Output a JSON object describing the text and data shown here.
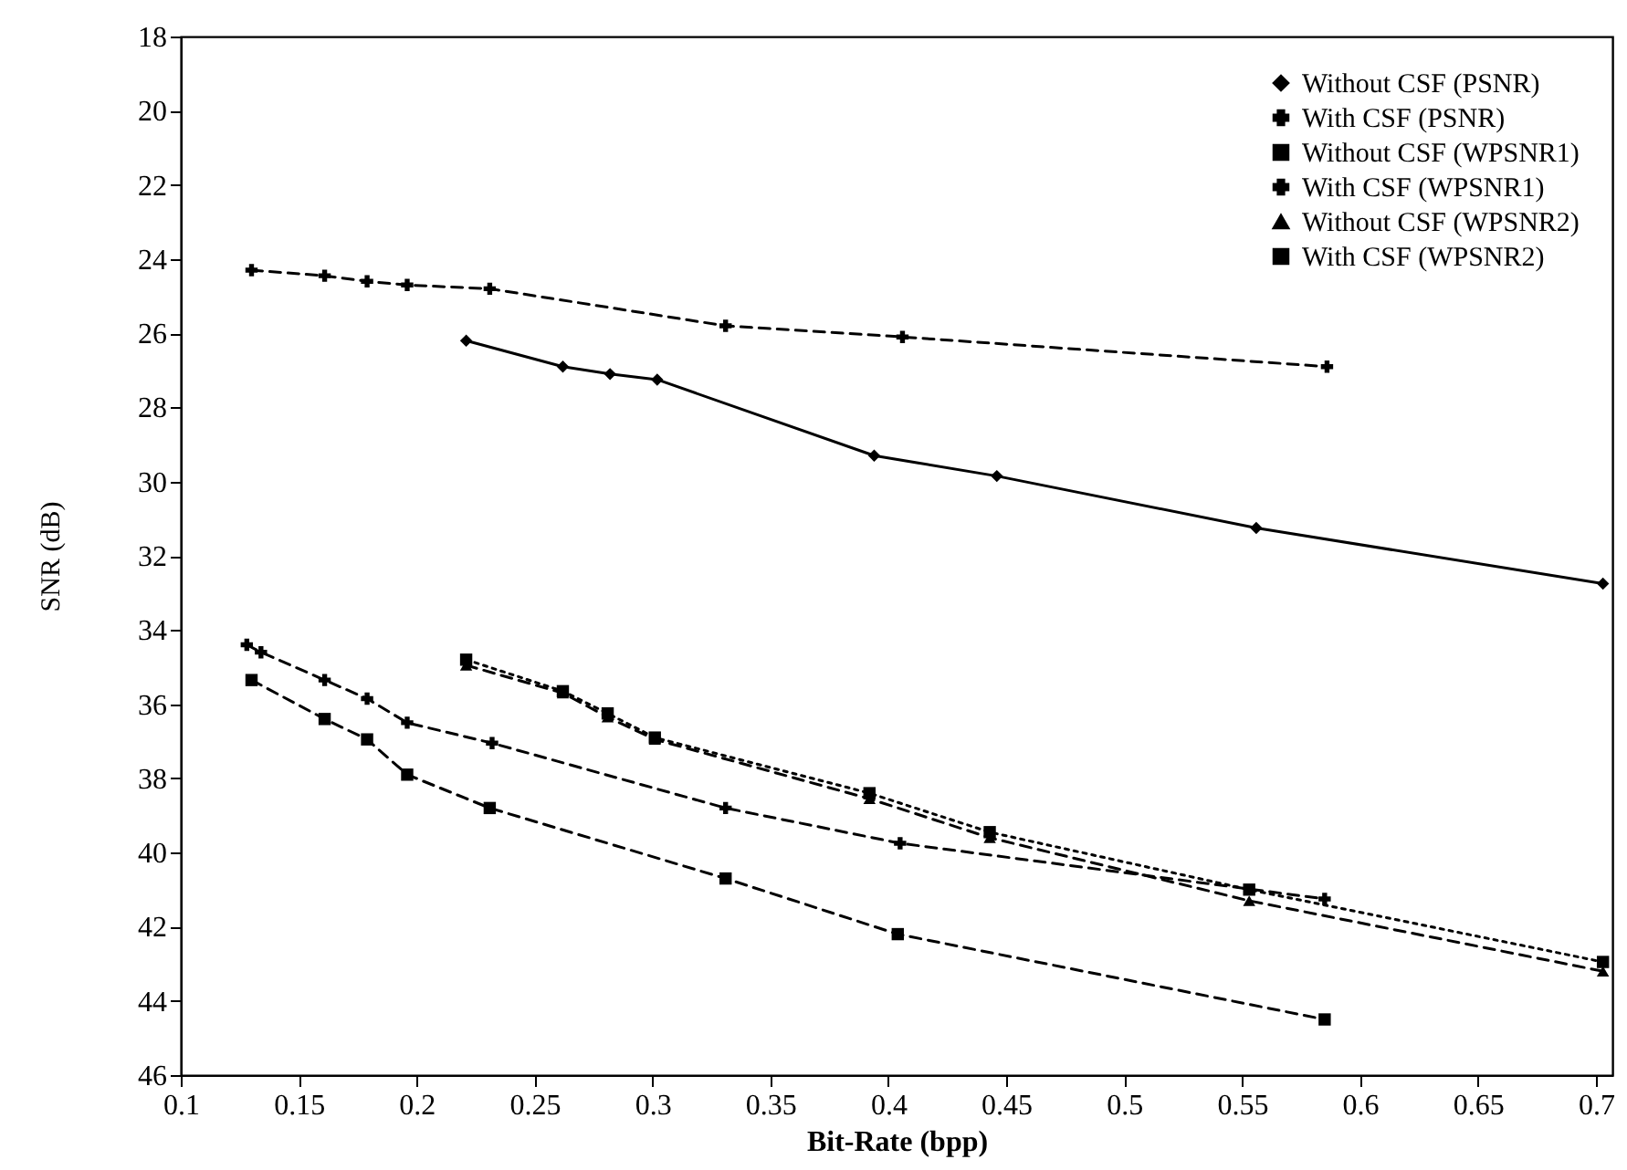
{
  "chart_data": {
    "type": "line",
    "xlabel": "Bit-Rate (bpp)",
    "ylabel": "SNR (dB)",
    "xlim": [
      0.1,
      0.707
    ],
    "xticks": [
      0.1,
      0.15,
      0.2,
      0.25,
      0.3,
      0.35,
      0.4,
      0.45,
      0.5,
      0.55,
      0.6,
      0.65,
      0.7
    ],
    "ylim": [
      46,
      18
    ],
    "yticks": [
      18,
      20,
      22,
      24,
      26,
      28,
      30,
      32,
      34,
      36,
      38,
      40,
      42,
      44,
      46
    ],
    "grid": false,
    "legend": "top right",
    "series": [
      {
        "name": "Without CSF (PSNR)",
        "color": "#000000",
        "marker": "diamond",
        "line_style": "solid",
        "x": [
          0.221,
          0.262,
          0.282,
          0.302,
          0.394,
          0.446,
          0.556,
          0.703
        ],
        "values": [
          26.2,
          26.9,
          27.1,
          27.25,
          29.3,
          29.85,
          31.25,
          32.75
        ]
      },
      {
        "name": "With CSF (PSNR)",
        "color": "#000000",
        "marker": "cross",
        "line_style": "dashed",
        "x": [
          0.13,
          0.161,
          0.179,
          0.196,
          0.231,
          0.331,
          0.406,
          0.586
        ],
        "values": [
          24.3,
          24.45,
          24.6,
          24.7,
          24.8,
          25.8,
          26.1,
          26.9
        ]
      },
      {
        "name": "Without CSF (WPSNR1)",
        "color": "#000000",
        "marker": "square",
        "line_style": "dotted",
        "x": [
          0.221,
          0.262,
          0.281,
          0.301,
          0.392,
          0.443,
          0.553,
          0.703
        ],
        "values": [
          34.8,
          35.65,
          36.25,
          36.9,
          38.4,
          39.45,
          41.0,
          42.95
        ]
      },
      {
        "name": "With CSF (WPSNR1)",
        "color": "#000000",
        "marker": "cross",
        "line_style": "dashed",
        "x": [
          0.128,
          0.134,
          0.161,
          0.179,
          0.196,
          0.232,
          0.331,
          0.405,
          0.585
        ],
        "values": [
          34.4,
          34.6,
          35.35,
          35.85,
          36.5,
          37.05,
          38.8,
          39.75,
          41.25
        ]
      },
      {
        "name": "Without CSF (WPSNR2)",
        "color": "#000000",
        "marker": "triangle",
        "line_style": "dashed",
        "x": [
          0.221,
          0.262,
          0.281,
          0.301,
          0.392,
          0.443,
          0.553,
          0.703
        ],
        "values": [
          34.95,
          35.7,
          36.35,
          36.95,
          38.55,
          39.6,
          41.3,
          43.2
        ]
      },
      {
        "name": "With CSF (WPSNR2)",
        "color": "#000000",
        "marker": "square",
        "line_style": "dashed",
        "x": [
          0.13,
          0.161,
          0.179,
          0.196,
          0.231,
          0.331,
          0.404,
          0.585
        ],
        "values": [
          35.35,
          36.4,
          36.95,
          37.9,
          38.8,
          40.7,
          42.2,
          44.5
        ]
      }
    ]
  }
}
